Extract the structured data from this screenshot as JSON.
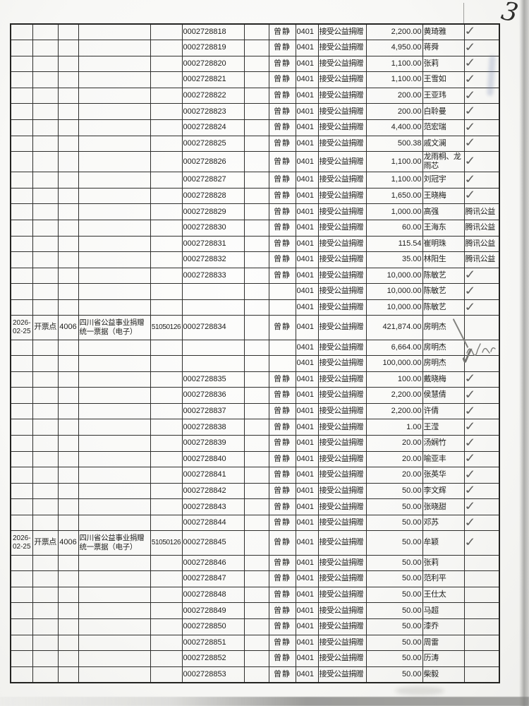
{
  "page": {
    "page_number": "3"
  },
  "table": {
    "rows": [
      {
        "date": "",
        "point": "",
        "code": "",
        "doc": "",
        "org": "",
        "receipt": "0002728818",
        "spacer": "",
        "operator": "曾静",
        "biz_code": "0401",
        "biz_name": "接受公益捐赠",
        "amount": "2,200.00",
        "payer": "黄琦雅",
        "mark": "check"
      },
      {
        "date": "",
        "point": "",
        "code": "",
        "doc": "",
        "org": "",
        "receipt": "0002728819",
        "spacer": "",
        "operator": "曾静",
        "biz_code": "0401",
        "biz_name": "接受公益捐赠",
        "amount": "4,950.00",
        "payer": "蒋舜",
        "mark": "check"
      },
      {
        "date": "",
        "point": "",
        "code": "",
        "doc": "",
        "org": "",
        "receipt": "0002728820",
        "spacer": "",
        "operator": "曾静",
        "biz_code": "0401",
        "biz_name": "接受公益捐赠",
        "amount": "1,100.00",
        "payer": "张莉",
        "mark": "check"
      },
      {
        "date": "",
        "point": "",
        "code": "",
        "doc": "",
        "org": "",
        "receipt": "0002728821",
        "spacer": "",
        "operator": "曾静",
        "biz_code": "0401",
        "biz_name": "接受公益捐赠",
        "amount": "1,100.00",
        "payer": "王雪如",
        "mark": "check"
      },
      {
        "date": "",
        "point": "",
        "code": "",
        "doc": "",
        "org": "",
        "receipt": "0002728822",
        "spacer": "",
        "operator": "曾静",
        "biz_code": "0401",
        "biz_name": "接受公益捐赠",
        "amount": "200.00",
        "payer": "王亚玮",
        "mark": "check"
      },
      {
        "date": "",
        "point": "",
        "code": "",
        "doc": "",
        "org": "",
        "receipt": "0002728823",
        "spacer": "",
        "operator": "曾静",
        "biz_code": "0401",
        "biz_name": "接受公益捐赠",
        "amount": "200.00",
        "payer": "白聆曼",
        "mark": "check"
      },
      {
        "date": "",
        "point": "",
        "code": "",
        "doc": "",
        "org": "",
        "receipt": "0002728824",
        "spacer": "",
        "operator": "曾静",
        "biz_code": "0401",
        "biz_name": "接受公益捐赠",
        "amount": "4,400.00",
        "payer": "范宏瑞",
        "mark": "check"
      },
      {
        "date": "",
        "point": "",
        "code": "",
        "doc": "",
        "org": "",
        "receipt": "0002728825",
        "spacer": "",
        "operator": "曾静",
        "biz_code": "0401",
        "biz_name": "接受公益捐赠",
        "amount": "500.38",
        "payer": "戚文澜",
        "mark": "check"
      },
      {
        "date": "",
        "point": "",
        "code": "",
        "doc": "",
        "org": "",
        "receipt": "0002728826",
        "spacer": "",
        "operator": "曾静",
        "biz_code": "0401",
        "biz_name": "接受公益捐赠",
        "amount": "1,100.00",
        "payer": "龙雨桐、龙雨芯",
        "mark": "check"
      },
      {
        "date": "",
        "point": "",
        "code": "",
        "doc": "",
        "org": "",
        "receipt": "0002728827",
        "spacer": "",
        "operator": "曾静",
        "biz_code": "0401",
        "biz_name": "接受公益捐赠",
        "amount": "1,100.00",
        "payer": "刘冠宇",
        "mark": "check"
      },
      {
        "date": "",
        "point": "",
        "code": "",
        "doc": "",
        "org": "",
        "receipt": "0002728828",
        "spacer": "",
        "operator": "曾静",
        "biz_code": "0401",
        "biz_name": "接受公益捐赠",
        "amount": "1,650.00",
        "payer": "王晓梅",
        "mark": "check"
      },
      {
        "date": "",
        "point": "",
        "code": "",
        "doc": "",
        "org": "",
        "receipt": "0002728829",
        "spacer": "",
        "operator": "曾静",
        "biz_code": "0401",
        "biz_name": "接受公益捐赠",
        "amount": "1,000.00",
        "payer": "高强",
        "mark": "tencent",
        "mark_text": "腾讯公益"
      },
      {
        "date": "",
        "point": "",
        "code": "",
        "doc": "",
        "org": "",
        "receipt": "0002728830",
        "spacer": "",
        "operator": "曾静",
        "biz_code": "0401",
        "biz_name": "接受公益捐赠",
        "amount": "60.00",
        "payer": "王海东",
        "mark": "tencent",
        "mark_text": "腾讯公益"
      },
      {
        "date": "",
        "point": "",
        "code": "",
        "doc": "",
        "org": "",
        "receipt": "0002728831",
        "spacer": "",
        "operator": "曾静",
        "biz_code": "0401",
        "biz_name": "接受公益捐赠",
        "amount": "115.54",
        "payer": "崔明珠",
        "mark": "tencent",
        "mark_text": "腾讯公益"
      },
      {
        "date": "",
        "point": "",
        "code": "",
        "doc": "",
        "org": "",
        "receipt": "0002728832",
        "spacer": "",
        "operator": "曾静",
        "biz_code": "0401",
        "biz_name": "接受公益捐赠",
        "amount": "35.00",
        "payer": "林阳生",
        "mark": "tencent",
        "mark_text": "腾讯公益"
      },
      {
        "date": "",
        "point": "",
        "code": "",
        "doc": "",
        "org": "",
        "receipt": "0002728833",
        "spacer": "",
        "operator": "曾静",
        "biz_code": "0401",
        "biz_name": "接受公益捐赠",
        "amount": "10,000.00",
        "payer": "陈敏艺",
        "mark": "check"
      },
      {
        "date": "",
        "point": "",
        "code": "",
        "doc": "",
        "org": "",
        "receipt": "",
        "spacer": "",
        "operator": "",
        "biz_code": "0401",
        "biz_name": "接受公益捐赠",
        "amount": "10,000.00",
        "payer": "陈敏艺",
        "mark": "check"
      },
      {
        "date": "",
        "point": "",
        "code": "",
        "doc": "",
        "org": "",
        "receipt": "",
        "spacer": "",
        "operator": "",
        "biz_code": "0401",
        "biz_name": "接受公益捐赠",
        "amount": "10,000.00",
        "payer": "陈敏艺",
        "mark": "check"
      },
      {
        "date": "2026-02-25",
        "point": "开票点",
        "code": "4006",
        "doc": "四川省公益事业捐赠统一票据（电子）",
        "org": "51050126",
        "receipt": "0002728834",
        "spacer": "",
        "operator": "曾静",
        "biz_code": "0401",
        "biz_name": "接受公益捐赠",
        "amount": "421,874.00",
        "payer": "房明杰",
        "mark": "stroke"
      },
      {
        "date": "",
        "point": "",
        "code": "",
        "doc": "",
        "org": "",
        "receipt": "",
        "spacer": "",
        "operator": "",
        "biz_code": "0401",
        "biz_name": "接受公益捐赠",
        "amount": "6,664.00",
        "payer": "房明杰",
        "mark": "scribble"
      },
      {
        "date": "",
        "point": "",
        "code": "",
        "doc": "",
        "org": "",
        "receipt": "",
        "spacer": "",
        "operator": "",
        "biz_code": "0401",
        "biz_name": "接受公益捐赠",
        "amount": "100,000.00",
        "payer": "房明杰",
        "mark": "longcheck"
      },
      {
        "date": "",
        "point": "",
        "code": "",
        "doc": "",
        "org": "",
        "receipt": "0002728835",
        "spacer": "",
        "operator": "曾静",
        "biz_code": "0401",
        "biz_name": "接受公益捐赠",
        "amount": "100.00",
        "payer": "戴晓梅",
        "mark": "check"
      },
      {
        "date": "",
        "point": "",
        "code": "",
        "doc": "",
        "org": "",
        "receipt": "0002728836",
        "spacer": "",
        "operator": "曾静",
        "biz_code": "0401",
        "biz_name": "接受公益捐赠",
        "amount": "2,200.00",
        "payer": "侯慧倩",
        "mark": "check"
      },
      {
        "date": "",
        "point": "",
        "code": "",
        "doc": "",
        "org": "",
        "receipt": "0002728837",
        "spacer": "",
        "operator": "曾静",
        "biz_code": "0401",
        "biz_name": "接受公益捐赠",
        "amount": "2,200.00",
        "payer": "许倩",
        "mark": "check"
      },
      {
        "date": "",
        "point": "",
        "code": "",
        "doc": "",
        "org": "",
        "receipt": "0002728838",
        "spacer": "",
        "operator": "曾静",
        "biz_code": "0401",
        "biz_name": "接受公益捐赠",
        "amount": "1.00",
        "payer": "王滢",
        "mark": "check"
      },
      {
        "date": "",
        "point": "",
        "code": "",
        "doc": "",
        "org": "",
        "receipt": "0002728839",
        "spacer": "",
        "operator": "曾静",
        "biz_code": "0401",
        "biz_name": "接受公益捐赠",
        "amount": "20.00",
        "payer": "汤娴竹",
        "mark": "check"
      },
      {
        "date": "",
        "point": "",
        "code": "",
        "doc": "",
        "org": "",
        "receipt": "0002728840",
        "spacer": "",
        "operator": "曾静",
        "biz_code": "0401",
        "biz_name": "接受公益捐赠",
        "amount": "20.00",
        "payer": "喻亚丰",
        "mark": "check"
      },
      {
        "date": "",
        "point": "",
        "code": "",
        "doc": "",
        "org": "",
        "receipt": "0002728841",
        "spacer": "",
        "operator": "曾静",
        "biz_code": "0401",
        "biz_name": "接受公益捐赠",
        "amount": "20.00",
        "payer": "张英华",
        "mark": "check"
      },
      {
        "date": "",
        "point": "",
        "code": "",
        "doc": "",
        "org": "",
        "receipt": "0002728842",
        "spacer": "",
        "operator": "曾静",
        "biz_code": "0401",
        "biz_name": "接受公益捐赠",
        "amount": "50.00",
        "payer": "李文辉",
        "mark": "check"
      },
      {
        "date": "",
        "point": "",
        "code": "",
        "doc": "",
        "org": "",
        "receipt": "0002728843",
        "spacer": "",
        "operator": "曾静",
        "biz_code": "0401",
        "biz_name": "接受公益捐赠",
        "amount": "50.00",
        "payer": "张晓甜",
        "mark": "check"
      },
      {
        "date": "",
        "point": "",
        "code": "",
        "doc": "",
        "org": "",
        "receipt": "0002728844",
        "spacer": "",
        "operator": "曾静",
        "biz_code": "0401",
        "biz_name": "接受公益捐赠",
        "amount": "50.00",
        "payer": "邓苏",
        "mark": "check"
      },
      {
        "date": "2026-02-25",
        "point": "开票点",
        "code": "4006",
        "doc": "四川省公益事业捐赠统一票据（电子）",
        "org": "51050126",
        "receipt": "0002728845",
        "spacer": "",
        "operator": "曾静",
        "biz_code": "0401",
        "biz_name": "接受公益捐赠",
        "amount": "50.00",
        "payer": "牟颖",
        "mark": "check"
      },
      {
        "date": "",
        "point": "",
        "code": "",
        "doc": "",
        "org": "",
        "receipt": "0002728846",
        "spacer": "",
        "operator": "曾静",
        "biz_code": "0401",
        "biz_name": "接受公益捐赠",
        "amount": "50.00",
        "payer": "张莉",
        "mark": ""
      },
      {
        "date": "",
        "point": "",
        "code": "",
        "doc": "",
        "org": "",
        "receipt": "0002728847",
        "spacer": "",
        "operator": "曾静",
        "biz_code": "0401",
        "biz_name": "接受公益捐赠",
        "amount": "50.00",
        "payer": "范利平",
        "mark": ""
      },
      {
        "date": "",
        "point": "",
        "code": "",
        "doc": "",
        "org": "",
        "receipt": "0002728848",
        "spacer": "",
        "operator": "曾静",
        "biz_code": "0401",
        "biz_name": "接受公益捐赠",
        "amount": "50.00",
        "payer": "王仕太",
        "mark": ""
      },
      {
        "date": "",
        "point": "",
        "code": "",
        "doc": "",
        "org": "",
        "receipt": "0002728849",
        "spacer": "",
        "operator": "曾静",
        "biz_code": "0401",
        "biz_name": "接受公益捐赠",
        "amount": "50.00",
        "payer": "马超",
        "mark": ""
      },
      {
        "date": "",
        "point": "",
        "code": "",
        "doc": "",
        "org": "",
        "receipt": "0002728850",
        "spacer": "",
        "operator": "曾静",
        "biz_code": "0401",
        "biz_name": "接受公益捐赠",
        "amount": "50.00",
        "payer": "漆乔",
        "mark": ""
      },
      {
        "date": "",
        "point": "",
        "code": "",
        "doc": "",
        "org": "",
        "receipt": "0002728851",
        "spacer": "",
        "operator": "曾静",
        "biz_code": "0401",
        "biz_name": "接受公益捐赠",
        "amount": "50.00",
        "payer": "周雷",
        "mark": ""
      },
      {
        "date": "",
        "point": "",
        "code": "",
        "doc": "",
        "org": "",
        "receipt": "0002728852",
        "spacer": "",
        "operator": "曾静",
        "biz_code": "0401",
        "biz_name": "接受公益捐赠",
        "amount": "50.00",
        "payer": "历涛",
        "mark": ""
      },
      {
        "date": "",
        "point": "",
        "code": "",
        "doc": "",
        "org": "",
        "receipt": "0002728853",
        "spacer": "",
        "operator": "曾静",
        "biz_code": "0401",
        "biz_name": "接受公益捐赠",
        "amount": "50.00",
        "payer": "柴毅",
        "mark": ""
      }
    ]
  },
  "colors": {
    "ink": "#1d1d1b",
    "pen_gray": "#5f5f5d",
    "paper": "#f8f8f6"
  }
}
